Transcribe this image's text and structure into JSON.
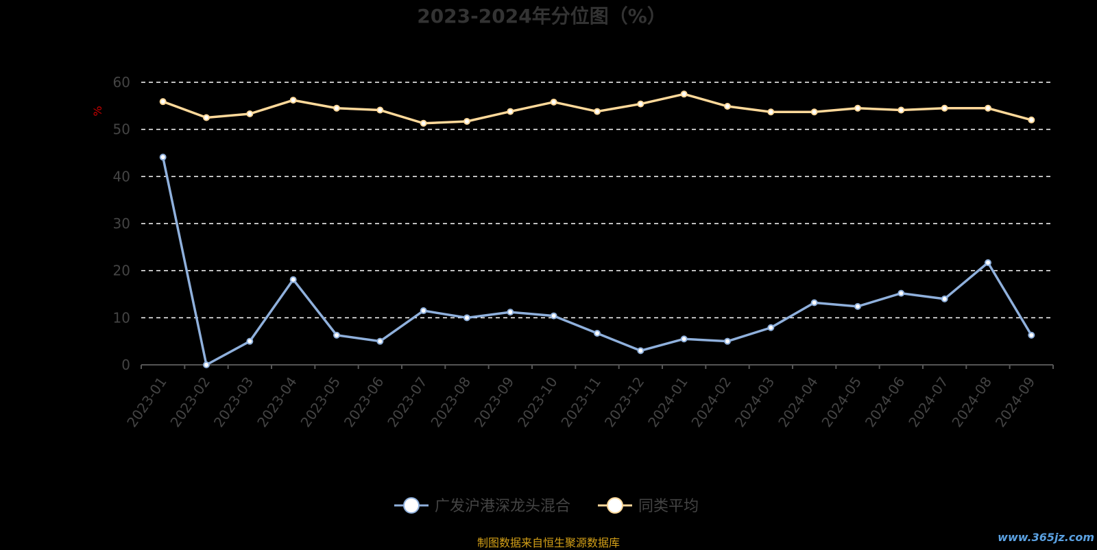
{
  "chart_data": {
    "type": "line",
    "title": "2023-2024年分位图（%）",
    "ylabel": "%",
    "xlabel": "",
    "ylim": [
      0,
      60
    ],
    "yticks": [
      0,
      10,
      20,
      30,
      40,
      50,
      60
    ],
    "grid": true,
    "legend_position": "bottom-center",
    "categories": [
      "2023-01",
      "2023-02",
      "2023-03",
      "2023-04",
      "2023-05",
      "2023-06",
      "2023-07",
      "2023-08",
      "2023-09",
      "2023-10",
      "2023-11",
      "2023-12",
      "2024-01",
      "2024-02",
      "2024-03",
      "2024-04",
      "2024-05",
      "2024-06",
      "2024-07",
      "2024-08",
      "2024-09"
    ],
    "series": [
      {
        "name": "广发沪港深龙头混合",
        "color": "#8fb0dc",
        "values": [
          44.1,
          0.0,
          5.0,
          18.1,
          6.3,
          5.0,
          11.5,
          10.0,
          11.2,
          10.4,
          6.7,
          3.0,
          5.5,
          5.0,
          7.9,
          13.2,
          12.4,
          15.2,
          14.0,
          21.7,
          6.3
        ]
      },
      {
        "name": "同类平均",
        "color": "#ffd99a",
        "values": [
          55.9,
          52.5,
          53.3,
          56.2,
          54.5,
          54.1,
          51.3,
          51.7,
          53.8,
          55.8,
          53.8,
          55.4,
          57.5,
          54.9,
          53.7,
          53.7,
          54.5,
          54.1,
          54.5,
          54.5,
          52.0
        ]
      }
    ]
  },
  "footer": {
    "source": "制图数据来自恒生聚源数据库",
    "watermark": "www.365jz.com"
  }
}
